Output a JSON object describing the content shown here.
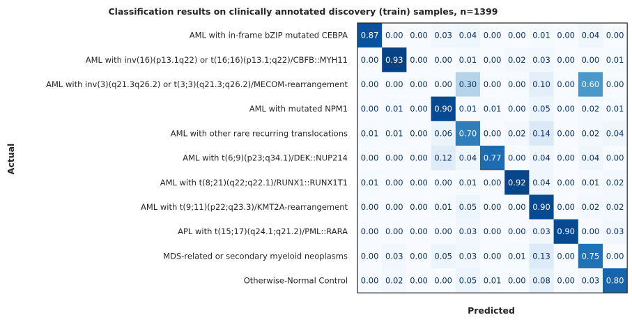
{
  "chart_data": {
    "type": "heatmap",
    "title": "Classification results on clinically annotated discovery (train) samples, n=1399",
    "xlabel": "Predicted",
    "ylabel": "Actual",
    "x_tick_labels_visible": false,
    "colormap": "Blues",
    "value_range": [
      0,
      1
    ],
    "rows": [
      "AML with in-frame bZIP mutated CEBPA",
      "AML with inv(16)(p13.1q22) or t(16;16)(p13.1;q22)/CBFB::MYH11",
      "AML with inv(3)(q21.3q26.2) or t(3;3)(q21.3;q26.2)/MECOM-rearrangement",
      "AML with mutated NPM1",
      "AML with other rare recurring translocations",
      "AML with t(6;9)(p23;q34.1)/DEK::NUP214",
      "AML with t(8;21)(q22;q22.1)/RUNX1::RUNX1T1",
      "AML with t(9;11)(p22;q23.3)/KMT2A-rearrangement",
      "APL with t(15;17)(q24.1;q21.2)/PML::RARA",
      "MDS-related or secondary myeloid neoplasms",
      "Otherwise-Normal Control"
    ],
    "values": [
      [
        0.87,
        0.0,
        0.0,
        0.03,
        0.04,
        0.0,
        0.0,
        0.01,
        0.0,
        0.04,
        0.0
      ],
      [
        0.0,
        0.93,
        0.0,
        0.0,
        0.01,
        0.0,
        0.02,
        0.03,
        0.0,
        0.0,
        0.01
      ],
      [
        0.0,
        0.0,
        0.0,
        0.0,
        0.3,
        0.0,
        0.0,
        0.1,
        0.0,
        0.6,
        0.0
      ],
      [
        0.0,
        0.01,
        0.0,
        0.9,
        0.01,
        0.01,
        0.0,
        0.05,
        0.0,
        0.02,
        0.01
      ],
      [
        0.01,
        0.01,
        0.0,
        0.06,
        0.7,
        0.0,
        0.02,
        0.14,
        0.0,
        0.02,
        0.04
      ],
      [
        0.0,
        0.0,
        0.0,
        0.12,
        0.04,
        0.77,
        0.0,
        0.04,
        0.0,
        0.04,
        0.0
      ],
      [
        0.01,
        0.0,
        0.0,
        0.0,
        0.01,
        0.0,
        0.92,
        0.04,
        0.0,
        0.01,
        0.02
      ],
      [
        0.0,
        0.0,
        0.0,
        0.01,
        0.05,
        0.0,
        0.0,
        0.9,
        0.0,
        0.02,
        0.02
      ],
      [
        0.0,
        0.0,
        0.0,
        0.0,
        0.03,
        0.0,
        0.0,
        0.03,
        0.9,
        0.0,
        0.03
      ],
      [
        0.0,
        0.03,
        0.0,
        0.05,
        0.03,
        0.0,
        0.01,
        0.13,
        0.0,
        0.75,
        0.0
      ],
      [
        0.0,
        0.02,
        0.0,
        0.0,
        0.05,
        0.01,
        0.0,
        0.08,
        0.0,
        0.03,
        0.8
      ]
    ],
    "grid": false,
    "legend": "none"
  }
}
